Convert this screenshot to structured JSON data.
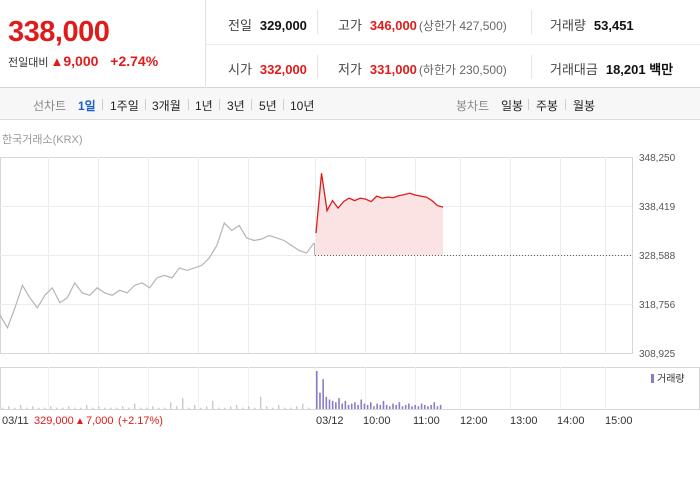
{
  "summary": {
    "price": "338,000",
    "change_label": "전일대비",
    "change_icon": "triangle-up-icon",
    "change_value": "9,000",
    "change_pct": "+2.74%",
    "prev_close_label": "전일",
    "prev_close": "329,000",
    "high_label": "고가",
    "high": "346,000",
    "upper_limit": "(상한가 427,500)",
    "volume_label": "거래량",
    "volume": "53,451",
    "open_label": "시가",
    "open": "332,000",
    "low_label": "저가",
    "low": "331,000",
    "lower_limit": "(하한가 230,500)",
    "amount_label": "거래대금",
    "amount": "18,201 백만",
    "colors": {
      "up": "#e01b1b",
      "down": "#1a5ecc"
    }
  },
  "toolbar": {
    "line_chart_label": "선차트",
    "periods": [
      "1일",
      "1주일",
      "3개월",
      "1년",
      "3년",
      "5년",
      "10년"
    ],
    "active_period": "1일",
    "candle_chart_label": "봉차트",
    "candles": [
      "일봉",
      "주봉",
      "월봉"
    ]
  },
  "chart_source": "한국거래소(KRX)",
  "chart_footer": {
    "prev_date": "03/11",
    "prev_close": "329,000",
    "prev_change": "7,000",
    "prev_change_pct": "(+2.17%)"
  },
  "chart_data": {
    "type": "line",
    "y_ticks": [
      "348,250",
      "338,419",
      "328,588",
      "318,756",
      "308,925"
    ],
    "ylim": [
      308925,
      348250
    ],
    "reference_line": 328588,
    "x_tick_labels": [
      "03/12",
      "10:00",
      "11:00",
      "12:00",
      "13:00",
      "14:00",
      "15:00"
    ],
    "legend": "거래량",
    "grid": true,
    "series": [
      {
        "session": "03/11",
        "values": [
          316500,
          314000,
          318000,
          322500,
          320000,
          318000,
          320500,
          322000,
          319000,
          320000,
          323000,
          321000,
          320500,
          322000,
          321000,
          320500,
          321500,
          321000,
          322500,
          323000,
          322000,
          324000,
          324500,
          324000,
          326000,
          325500,
          326000,
          326500,
          328000,
          330500,
          335000,
          333500,
          334500,
          332000,
          331500,
          331800,
          332500,
          332000,
          331500,
          330500,
          329500,
          329000,
          331000
        ]
      },
      {
        "session": "03/12",
        "values": [
          333000,
          345000,
          337500,
          339500,
          338000,
          339300,
          340000,
          339500,
          340000,
          339800,
          339300,
          340400,
          340000,
          340200,
          340100,
          340500,
          340700,
          341000,
          340600,
          340400,
          340200,
          339500,
          338500,
          338200
        ]
      }
    ],
    "volume": {
      "prev": [
        1,
        2,
        1,
        3,
        1,
        2,
        1,
        1,
        2,
        1,
        1,
        2,
        1,
        1,
        3,
        1,
        2,
        1,
        1,
        1,
        2,
        1,
        4,
        1,
        1,
        2,
        1,
        1,
        5,
        2,
        8,
        1,
        3,
        1,
        2,
        6,
        1,
        1,
        2,
        3,
        1,
        2,
        1,
        9,
        2,
        1,
        3,
        1,
        1,
        2,
        4,
        1
      ],
      "today": [
        28,
        12,
        22,
        9,
        7,
        6,
        5,
        8,
        4,
        6,
        3,
        4,
        5,
        3,
        7,
        4,
        3,
        5,
        2,
        4,
        3,
        6,
        3,
        2,
        4,
        3,
        5,
        2,
        3,
        4,
        2,
        3,
        2,
        4,
        3,
        2,
        3,
        5,
        2,
        3
      ]
    }
  }
}
